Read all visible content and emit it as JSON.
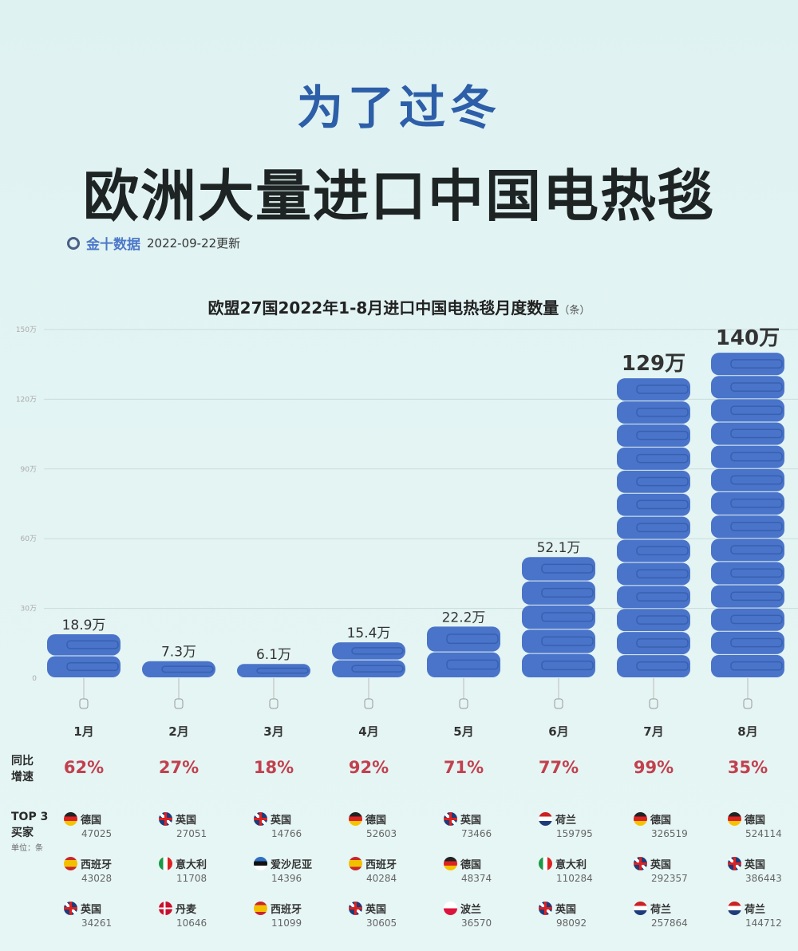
{
  "header": {
    "subtitle": "为了过冬",
    "title": "欧洲大量进口中国电热毯",
    "brand": "金十数据",
    "updated": "2022-09-22更新"
  },
  "chart_data": {
    "type": "bar",
    "title": "欧盟27国2022年1-8月进口中国电热毯月度数量",
    "unit": "（条）",
    "categories": [
      "1月",
      "2月",
      "3月",
      "4月",
      "5月",
      "6月",
      "7月",
      "8月"
    ],
    "values": [
      189000,
      73000,
      61000,
      154000,
      222000,
      521000,
      1290000,
      1400000
    ],
    "data_labels": [
      "18.9万",
      "7.3万",
      "6.1万",
      "15.4万",
      "22.2万",
      "52.1万",
      "129万",
      "140万"
    ],
    "ylim": [
      0,
      1500000
    ],
    "yticks": [
      0,
      300000,
      600000,
      900000,
      1200000,
      1500000
    ],
    "ytick_labels": [
      "0",
      "30万",
      "60万",
      "90万",
      "120万",
      "150万"
    ],
    "grid": true,
    "bar_color": "#4a74c9"
  },
  "growth": {
    "label_line1": "同比",
    "label_line2": "增速",
    "values": [
      "62%",
      "27%",
      "18%",
      "92%",
      "71%",
      "77%",
      "99%",
      "35%"
    ],
    "color": "#c2404e"
  },
  "buyers": {
    "label_line1": "TOP 3",
    "label_line2": "买家",
    "unit": "单位：条",
    "months": [
      [
        {
          "flag": "de",
          "name": "德国",
          "value": "47025"
        },
        {
          "flag": "es",
          "name": "西班牙",
          "value": "43028"
        },
        {
          "flag": "uk",
          "name": "英国",
          "value": "34261"
        }
      ],
      [
        {
          "flag": "uk",
          "name": "英国",
          "value": "27051"
        },
        {
          "flag": "it",
          "name": "意大利",
          "value": "11708"
        },
        {
          "flag": "dk",
          "name": "丹麦",
          "value": "10646"
        }
      ],
      [
        {
          "flag": "uk",
          "name": "英国",
          "value": "14766"
        },
        {
          "flag": "ee",
          "name": "爱沙尼亚",
          "value": "14396"
        },
        {
          "flag": "es",
          "name": "西班牙",
          "value": "11099"
        }
      ],
      [
        {
          "flag": "de",
          "name": "德国",
          "value": "52603"
        },
        {
          "flag": "es",
          "name": "西班牙",
          "value": "40284"
        },
        {
          "flag": "uk",
          "name": "英国",
          "value": "30605"
        }
      ],
      [
        {
          "flag": "uk",
          "name": "英国",
          "value": "73466"
        },
        {
          "flag": "de",
          "name": "德国",
          "value": "48374"
        },
        {
          "flag": "pl",
          "name": "波兰",
          "value": "36570"
        }
      ],
      [
        {
          "flag": "nl",
          "name": "荷兰",
          "value": "159795"
        },
        {
          "flag": "it",
          "name": "意大利",
          "value": "110284"
        },
        {
          "flag": "uk",
          "name": "英国",
          "value": "98092"
        }
      ],
      [
        {
          "flag": "de",
          "name": "德国",
          "value": "326519"
        },
        {
          "flag": "uk",
          "name": "英国",
          "value": "292357"
        },
        {
          "flag": "nl",
          "name": "荷兰",
          "value": "257864"
        }
      ],
      [
        {
          "flag": "de",
          "name": "德国",
          "value": "524114"
        },
        {
          "flag": "uk",
          "name": "英国",
          "value": "386443"
        },
        {
          "flag": "nl",
          "name": "荷兰",
          "value": "144712"
        }
      ]
    ]
  }
}
